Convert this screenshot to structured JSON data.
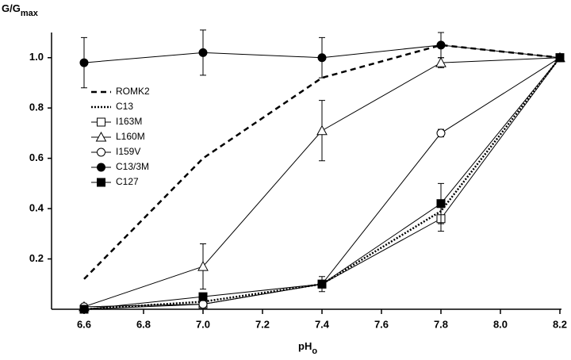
{
  "chart_data": {
    "type": "line",
    "ylabel": "G/G",
    "ylabel_sub": "max",
    "xlabel": "pH",
    "xlabel_sub": "o",
    "x": [
      6.6,
      7.0,
      7.4,
      7.8,
      8.2
    ],
    "xlim": [
      6.5,
      8.2
    ],
    "xticks": [
      6.6,
      6.8,
      {
        "value": 7,
        "label": "7.0"
      },
      7.2,
      7.4,
      7.6,
      7.8,
      {
        "value": 8,
        "label": "8.0"
      },
      8.2
    ],
    "ylim": [
      0,
      1.1
    ],
    "yticks": [
      0.2,
      0.4,
      0.6,
      0.8,
      {
        "value": 1,
        "label": "1.0"
      }
    ],
    "grid": false,
    "legend": "upper-left",
    "series": [
      {
        "name": "ROMK2",
        "color": "#000000",
        "dash": "dashed",
        "marker": "none",
        "values": [
          0.12,
          0.6,
          0.92,
          1.05,
          1.0
        ],
        "errors": [
          null,
          null,
          null,
          null,
          null
        ]
      },
      {
        "name": "C13",
        "color": "#000000",
        "dash": "dotted",
        "marker": "none",
        "values": [
          0,
          0.03,
          0.1,
          0.39,
          1.0
        ],
        "errors": [
          null,
          null,
          null,
          null,
          null
        ]
      },
      {
        "name": "I163M",
        "color": "#000000",
        "dash": "solid",
        "marker": "open-square",
        "values": [
          0,
          0.02,
          0.1,
          0.36,
          1.0
        ],
        "errors": [
          null,
          null,
          null,
          0.05,
          null
        ]
      },
      {
        "name": "L160M",
        "color": "#000000",
        "dash": "solid",
        "marker": "open-triangle",
        "values": [
          0.01,
          0.17,
          0.71,
          0.98,
          1.0
        ],
        "errors": [
          null,
          0.09,
          0.12,
          0.02,
          null
        ]
      },
      {
        "name": "I159V",
        "color": "#000000",
        "dash": "solid",
        "marker": "open-circle",
        "values": [
          0.01,
          0.02,
          0.1,
          0.7,
          1.0
        ],
        "errors": [
          null,
          null,
          null,
          0.015,
          null
        ]
      },
      {
        "name": "C13/3M",
        "color": "#000000",
        "dash": "solid",
        "marker": "filled-circle",
        "values": [
          0.98,
          1.02,
          1.0,
          1.05,
          1.0
        ],
        "errors": [
          0.1,
          0.09,
          0.08,
          0.05,
          null
        ]
      },
      {
        "name": "C127",
        "color": "#000000",
        "dash": "solid",
        "marker": "filled-square",
        "values": [
          0,
          0.05,
          0.1,
          0.42,
          1.0
        ],
        "errors": [
          null,
          null,
          0.03,
          0.08,
          null
        ]
      }
    ]
  }
}
